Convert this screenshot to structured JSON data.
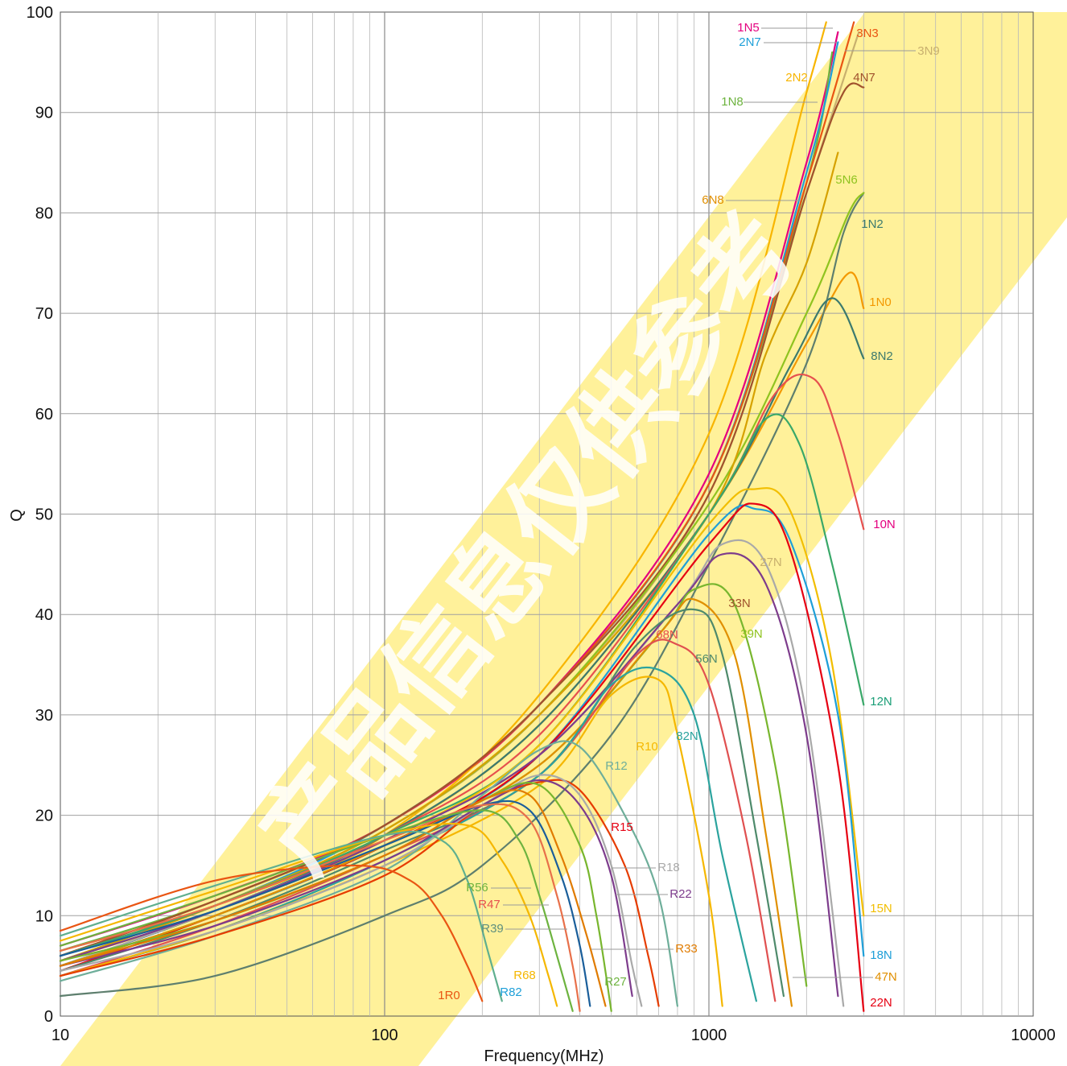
{
  "chart_data": {
    "type": "line",
    "title": "",
    "xlabel": "Frequency(MHz)",
    "ylabel": "Q",
    "xscale": "log",
    "xlim": [
      10,
      10000
    ],
    "ylim": [
      0,
      100
    ],
    "x_ticks": [
      "10",
      "100",
      "1000",
      "10000"
    ],
    "y_ticks": [
      "0",
      "10",
      "20",
      "30",
      "40",
      "50",
      "60",
      "70",
      "80",
      "90",
      "100"
    ],
    "grid": true,
    "legend": "inline labels beside curves",
    "watermark_text": "产品信息仅供参考",
    "series": [
      {
        "name": "1N0",
        "color": "#F39800",
        "x": [
          10,
          30,
          100,
          300,
          1000,
          2000,
          2700,
          3000
        ],
        "y": [
          6.5,
          11,
          18,
          29,
          50,
          67,
          74,
          70.5
        ]
      },
      {
        "name": "1N2",
        "color": "#5E7F6E",
        "x": [
          10,
          30,
          100,
          200,
          500,
          1000,
          2000,
          2600,
          3000
        ],
        "y": [
          2,
          4,
          10,
          15,
          28,
          45,
          65,
          78,
          82
        ]
      },
      {
        "name": "1N5",
        "color": "#E4007F",
        "x": [
          10,
          30,
          100,
          300,
          1000,
          2000,
          2500
        ],
        "y": [
          7,
          12,
          19,
          31,
          54,
          85,
          98
        ]
      },
      {
        "name": "1N8",
        "color": "#6DB33F",
        "x": [
          10,
          30,
          100,
          300,
          1000,
          2000,
          2400
        ],
        "y": [
          6.5,
          11.5,
          19,
          31,
          53,
          83,
          96
        ]
      },
      {
        "name": "2N2",
        "color": "#F8B500",
        "x": [
          10,
          30,
          100,
          300,
          1000,
          2000,
          2300
        ],
        "y": [
          5.5,
          10.5,
          18,
          32,
          58,
          92,
          99
        ]
      },
      {
        "name": "2N7",
        "color": "#1E9FD8",
        "x": [
          10,
          30,
          100,
          300,
          1000,
          2000,
          2500
        ],
        "y": [
          6,
          11,
          19,
          31,
          53,
          84,
          97
        ]
      },
      {
        "name": "3N3",
        "color": "#E95513",
        "x": [
          10,
          30,
          100,
          300,
          1000,
          2000,
          2800
        ],
        "y": [
          6,
          11.5,
          19,
          31,
          53,
          83,
          99
        ]
      },
      {
        "name": "3N9",
        "color": "#C8B06E",
        "x": [
          10,
          30,
          100,
          300,
          1000,
          2000,
          2900
        ],
        "y": [
          5.5,
          11,
          18.5,
          30,
          52,
          82,
          98
        ]
      },
      {
        "name": "4N7",
        "color": "#A0522D",
        "x": [
          10,
          30,
          100,
          300,
          1000,
          2000,
          2600,
          3000
        ],
        "y": [
          6,
          11.5,
          19,
          31,
          52,
          82,
          92,
          92.5
        ]
      },
      {
        "name": "5N6",
        "color": "#8FC31F",
        "x": [
          10,
          30,
          100,
          300,
          1000,
          2000,
          2700,
          3000
        ],
        "y": [
          5.5,
          11,
          18.5,
          30,
          51,
          70,
          80,
          82
        ]
      },
      {
        "name": "6N8",
        "color": "#D6A100",
        "x": [
          10,
          30,
          100,
          300,
          1000,
          1500,
          2000,
          2500
        ],
        "y": [
          5.5,
          11,
          18.5,
          30,
          50,
          66,
          75,
          86
        ]
      },
      {
        "name": "8N2",
        "color": "#3C7A6E",
        "x": [
          10,
          30,
          100,
          300,
          1000,
          1800,
          2400,
          3000
        ],
        "y": [
          5,
          10.5,
          18,
          29,
          50,
          65,
          71.5,
          65.5
        ]
      },
      {
        "name": "10N",
        "color": "#E6504E",
        "x": [
          10,
          30,
          100,
          300,
          1000,
          1600,
          2100,
          2500,
          3000
        ],
        "y": [
          6,
          11,
          18,
          28,
          50,
          62,
          63.5,
          58,
          48.5
        ]
      },
      {
        "name": "12N",
        "color": "#39A869",
        "x": [
          10,
          30,
          100,
          300,
          1000,
          1500,
          1900,
          2400,
          3000
        ],
        "y": [
          6,
          11,
          18,
          27,
          50,
          59.5,
          57,
          45,
          31
        ]
      },
      {
        "name": "15N",
        "color": "#F2BE00",
        "x": [
          10,
          30,
          100,
          300,
          1000,
          1400,
          1800,
          2400,
          3000
        ],
        "y": [
          5.5,
          10.5,
          17.5,
          27,
          49,
          52.5,
          50,
          35,
          10
        ]
      },
      {
        "name": "18N",
        "color": "#1E9FD8",
        "x": [
          10,
          30,
          100,
          300,
          1000,
          1400,
          1800,
          2500,
          3000
        ],
        "y": [
          5,
          10,
          17,
          26,
          48,
          50.5,
          47,
          30,
          6
        ]
      },
      {
        "name": "22N",
        "color": "#E60012",
        "x": [
          10,
          30,
          100,
          300,
          1000,
          1400,
          1800,
          2500,
          3000
        ],
        "y": [
          4.5,
          10,
          17,
          26,
          47,
          51,
          46,
          25,
          0.5
        ]
      },
      {
        "name": "27N",
        "color": "#A9A9A9",
        "x": [
          10,
          30,
          100,
          300,
          800,
          1100,
          1500,
          2000,
          2600
        ],
        "y": [
          5,
          10.5,
          17.5,
          26,
          41,
          47,
          45,
          30,
          1
        ]
      },
      {
        "name": "33N",
        "color": "#7D3C8C",
        "x": [
          10,
          30,
          100,
          300,
          800,
          1100,
          1500,
          2000,
          2500
        ],
        "y": [
          5.5,
          10.5,
          17.5,
          26,
          41,
          46,
          43,
          28,
          2
        ]
      },
      {
        "name": "39N",
        "color": "#78B62E",
        "x": [
          10,
          30,
          100,
          300,
          700,
          900,
          1200,
          1600,
          2000
        ],
        "y": [
          5,
          10,
          17,
          25,
          38,
          42.5,
          41,
          25,
          3
        ]
      },
      {
        "name": "47N",
        "color": "#E08F00",
        "x": [
          10,
          30,
          100,
          300,
          700,
          900,
          1200,
          1500,
          1800
        ],
        "y": [
          5,
          10,
          17,
          25,
          38,
          41.5,
          36,
          18,
          1
        ]
      },
      {
        "name": "56N",
        "color": "#4E8A6B",
        "x": [
          10,
          30,
          100,
          300,
          600,
          900,
          1100,
          1400,
          1700
        ],
        "y": [
          4.5,
          9.5,
          16.5,
          24,
          37,
          40.5,
          36,
          18,
          2
        ]
      },
      {
        "name": "68N",
        "color": "#E05050",
        "x": [
          10,
          30,
          100,
          300,
          600,
          800,
          1000,
          1300,
          1600
        ],
        "y": [
          4,
          9,
          16,
          24,
          36,
          37,
          33,
          18,
          1.5
        ]
      },
      {
        "name": "82N",
        "color": "#2BA39E",
        "x": [
          10,
          30,
          100,
          300,
          500,
          700,
          900,
          1100,
          1400
        ],
        "y": [
          4,
          8.5,
          15.5,
          24,
          33,
          34.5,
          30,
          16,
          1.5
        ]
      },
      {
        "name": "R10",
        "color": "#F5B700",
        "x": [
          10,
          30,
          100,
          300,
          500,
          700,
          800,
          1000,
          1100
        ],
        "y": [
          4,
          8.5,
          15,
          23,
          32,
          33.5,
          28,
          12,
          1
        ]
      },
      {
        "name": "R12",
        "color": "#6EAE9A",
        "x": [
          10,
          30,
          100,
          200,
          300,
          400,
          550,
          700,
          800
        ],
        "y": [
          3.5,
          8,
          14.5,
          22,
          26.5,
          26.8,
          20,
          12,
          1
        ]
      },
      {
        "name": "R15",
        "color": "#E63C00",
        "x": [
          10,
          30,
          100,
          200,
          300,
          400,
          550,
          650,
          700
        ],
        "y": [
          4,
          8,
          14,
          21,
          23.3,
          22.5,
          15,
          6,
          1
        ]
      },
      {
        "name": "R18",
        "color": "#A9A9A9",
        "x": [
          10,
          30,
          100,
          200,
          300,
          400,
          500,
          580,
          620
        ],
        "y": [
          4.5,
          8.5,
          15,
          21,
          24,
          22,
          15,
          5,
          1
        ]
      },
      {
        "name": "R22",
        "color": "#7D3C8C",
        "x": [
          10,
          30,
          100,
          200,
          300,
          400,
          500,
          580
        ],
        "y": [
          5,
          9,
          15.5,
          21,
          23.5,
          21,
          14,
          2
        ]
      },
      {
        "name": "R27",
        "color": "#78B62E",
        "x": [
          10,
          30,
          100,
          200,
          300,
          400,
          450,
          500
        ],
        "y": [
          5.5,
          9.5,
          16,
          21.5,
          23,
          17,
          10,
          0.5
        ]
      },
      {
        "name": "R33",
        "color": "#E07B00",
        "x": [
          10,
          30,
          100,
          200,
          280,
          350,
          420,
          480
        ],
        "y": [
          5,
          9.5,
          16,
          21.5,
          22,
          16,
          8,
          1
        ]
      },
      {
        "name": "R39",
        "color": "#1A5E9A",
        "x": [
          10,
          30,
          100,
          200,
          280,
          350,
          400,
          430
        ],
        "y": [
          6,
          10.5,
          17,
          21,
          20.5,
          14,
          7,
          1
        ]
      },
      {
        "name": "R47",
        "color": "#E8704A",
        "x": [
          10,
          30,
          100,
          200,
          280,
          340,
          380,
          400
        ],
        "y": [
          6.5,
          11,
          17.5,
          21,
          19.5,
          12,
          5,
          0.5
        ]
      },
      {
        "name": "R56",
        "color": "#6DB33F",
        "x": [
          10,
          30,
          100,
          200,
          260,
          300,
          340,
          380
        ],
        "y": [
          7,
          12,
          18,
          20.5,
          17.5,
          12,
          6,
          0.5
        ]
      },
      {
        "name": "R68",
        "color": "#F5B700",
        "x": [
          10,
          30,
          100,
          180,
          230,
          280,
          320,
          340
        ],
        "y": [
          7.5,
          12.5,
          18,
          19,
          15.5,
          10,
          4,
          1
        ]
      },
      {
        "name": "R82",
        "color": "#5FAF8F",
        "x": [
          10,
          30,
          100,
          150,
          180,
          210,
          230
        ],
        "y": [
          8,
          13,
          18,
          17.5,
          13.5,
          6,
          1.5
        ]
      },
      {
        "name": "1R0",
        "color": "#E95513",
        "x": [
          10,
          30,
          80,
          120,
          150,
          180,
          200
        ],
        "y": [
          8.5,
          13.5,
          15,
          13.5,
          10,
          5,
          1.5
        ]
      }
    ],
    "annotations": [
      {
        "text": "1N5",
        "color": "#E4007F"
      },
      {
        "text": "2N7",
        "color": "#1E9FD8"
      },
      {
        "text": "3N3",
        "color": "#E95513"
      },
      {
        "text": "3N9",
        "color": "#C8B06E"
      },
      {
        "text": "2N2",
        "color": "#F8B500"
      },
      {
        "text": "4N7",
        "color": "#A0522D"
      },
      {
        "text": "1N8",
        "color": "#6DB33F"
      },
      {
        "text": "5N6",
        "color": "#8FC31F"
      },
      {
        "text": "6N8",
        "color": "#E08F00"
      },
      {
        "text": "1N2",
        "color": "#3C7A6E"
      },
      {
        "text": "1N0",
        "color": "#F39800"
      },
      {
        "text": "8N2",
        "color": "#3C7A6E"
      },
      {
        "text": "10N",
        "color": "#E4007F"
      },
      {
        "text": "27N",
        "color": "#C8B06E"
      },
      {
        "text": "33N",
        "color": "#A0522D"
      },
      {
        "text": "39N",
        "color": "#8FC31F"
      },
      {
        "text": "68N",
        "color": "#E6504E"
      },
      {
        "text": "56N",
        "color": "#4E8A6B"
      },
      {
        "text": "12N",
        "color": "#1A9E77"
      },
      {
        "text": "R10",
        "color": "#F5B700"
      },
      {
        "text": "82N",
        "color": "#2BA39E"
      },
      {
        "text": "R12",
        "color": "#6EAE9A"
      },
      {
        "text": "R15",
        "color": "#E60012"
      },
      {
        "text": "R18",
        "color": "#A9A9A9"
      },
      {
        "text": "R22",
        "color": "#7D3C8C"
      },
      {
        "text": "R33",
        "color": "#E07B00"
      },
      {
        "text": "R56",
        "color": "#6DB33F"
      },
      {
        "text": "R47",
        "color": "#E6504E"
      },
      {
        "text": "R39",
        "color": "#5E8F7E"
      },
      {
        "text": "R68",
        "color": "#F5B700"
      },
      {
        "text": "R27",
        "color": "#6DB33F"
      },
      {
        "text": "R82",
        "color": "#1E9FD8"
      },
      {
        "text": "1R0",
        "color": "#E95513"
      },
      {
        "text": "15N",
        "color": "#F2BE00"
      },
      {
        "text": "18N",
        "color": "#1E9FD8"
      },
      {
        "text": "47N",
        "color": "#E08F00"
      },
      {
        "text": "22N",
        "color": "#E60012"
      }
    ]
  }
}
